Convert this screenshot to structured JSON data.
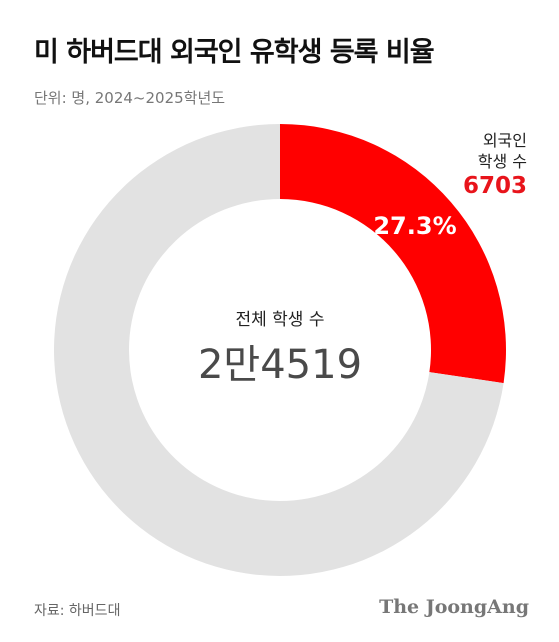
{
  "header": {
    "title": "미 하버드대 외국인 유학생 등록 비율",
    "unit": "단위: 명, 2024~2025학년도"
  },
  "chart_data": {
    "type": "pie",
    "title": "미 하버드대 외국인 유학생 등록 비율",
    "subtitle": "단위: 명, 2024~2025학년도",
    "total_label": "전체 학생 수",
    "total_display": "2만4519",
    "total": 24519,
    "slices": [
      {
        "label": "외국인 학생 수",
        "value": 6703,
        "value_display": "6703",
        "percent": 27.3,
        "percent_display": "27.3%",
        "color": "#ff0000"
      },
      {
        "label": "",
        "value": 17816,
        "color": "#e2e2e2"
      }
    ]
  },
  "callout": {
    "line1": "외국인",
    "line2": "학생 수"
  },
  "footer": {
    "source": "자료: 하버드대",
    "brand": "The JoongAng"
  }
}
